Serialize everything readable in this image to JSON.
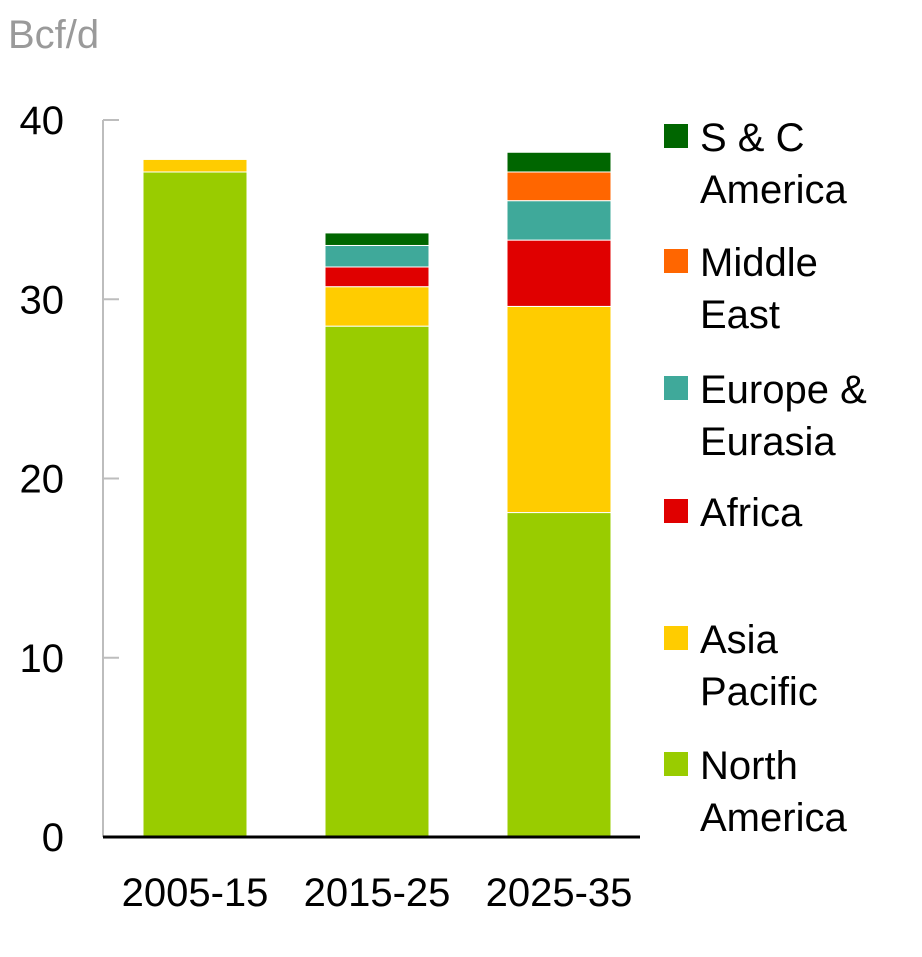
{
  "chart_data": {
    "type": "bar",
    "stacked": true,
    "unit_label": "Bcf/d",
    "categories": [
      "2005-15",
      "2015-25",
      "2025-35"
    ],
    "ylim": [
      0,
      40
    ],
    "yticks": [
      0,
      10,
      20,
      30,
      40
    ],
    "grid": false,
    "legend_position": "right",
    "series": [
      {
        "name": "North America",
        "color": "#99cc00",
        "values": [
          37.1,
          28.5,
          18.1
        ]
      },
      {
        "name": "Asia Pacific",
        "color": "#ffcc00",
        "values": [
          0.7,
          2.2,
          11.5
        ]
      },
      {
        "name": "Africa",
        "color": "#e00000",
        "values": [
          0,
          1.1,
          3.7
        ]
      },
      {
        "name": "Europe & Eurasia",
        "color": "#3fa99a",
        "values": [
          0,
          1.2,
          2.2
        ]
      },
      {
        "name": "Middle East",
        "color": "#ff6600",
        "values": [
          0,
          0,
          1.6
        ]
      },
      {
        "name": "S & C America",
        "color": "#006600",
        "values": [
          0,
          0.7,
          1.1
        ]
      }
    ],
    "legend": [
      {
        "lines": [
          "S & C",
          "America"
        ],
        "color": "#006600"
      },
      {
        "lines": [
          "Middle",
          "East"
        ],
        "color": "#ff6600"
      },
      {
        "lines": [
          "Europe &",
          "Eurasia"
        ],
        "color": "#3fa99a"
      },
      {
        "lines": [
          "Africa"
        ],
        "color": "#e00000"
      },
      {
        "lines": [
          "Asia",
          "Pacific"
        ],
        "color": "#ffcc00"
      },
      {
        "lines": [
          "North",
          "America"
        ],
        "color": "#99cc00"
      }
    ]
  }
}
